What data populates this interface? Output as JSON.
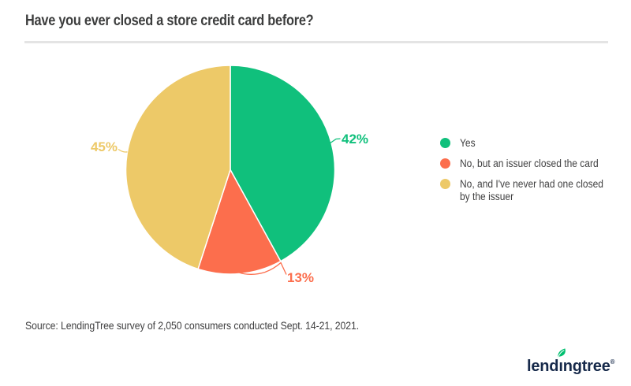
{
  "header": {
    "title": "Have you ever closed a store credit card before?"
  },
  "chart_data": {
    "type": "pie",
    "title": "Have you ever closed a store credit card before?",
    "slices": [
      {
        "label": "Yes",
        "value": 42,
        "value_label": "42%",
        "color": "#10c07c"
      },
      {
        "label": "No, but an issuer closed the card",
        "value": 13,
        "value_label": "13%",
        "color": "#fc6e4d"
      },
      {
        "label": "No, and I've never had one closed by the issuer",
        "value": 45,
        "value_label": "45%",
        "color": "#edc968"
      }
    ],
    "start_angle_deg": 0,
    "direction": "clockwise",
    "legend_position": "right",
    "data_labels": "outside with leader lines",
    "slice_border_color": "#ffffff"
  },
  "source": {
    "text": "Source: LendingTree survey of 2,050 consumers conducted Sept. 14-21, 2021."
  },
  "logo": {
    "brand": "lendingtree",
    "text_before_leaf_i": "lend",
    "dotless_i": "ı",
    "text_after_leaf_i": "ngtree",
    "registered_mark": "®",
    "leaf_color": "#00bf6f",
    "text_color": "#16294a"
  },
  "colors": {
    "title_text": "#3c3d3d",
    "body_text": "#404041",
    "divider": "#e4e4e4"
  }
}
